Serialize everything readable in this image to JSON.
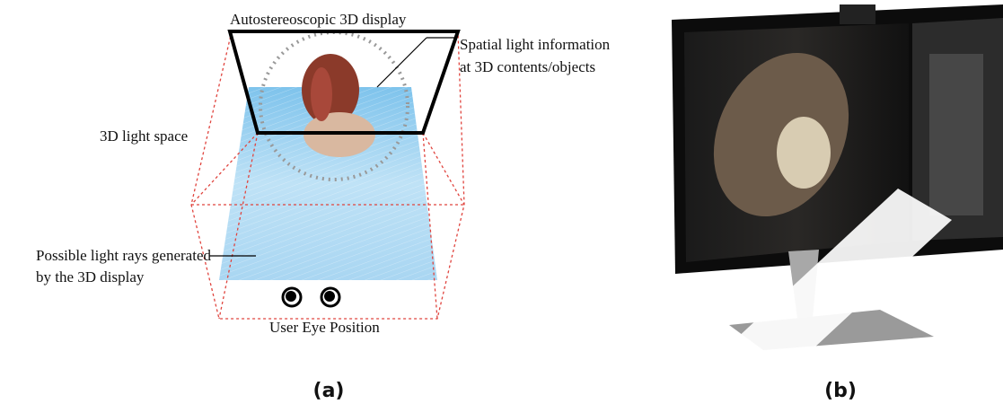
{
  "panel_a": {
    "display_label": "Autostereoscopic 3D display",
    "spatial_label": [
      "Spatial light information",
      "at 3D contents/objects"
    ],
    "space_label": "3D light space",
    "rays_label": [
      "Possible light rays generated",
      "by the 3D display"
    ],
    "eye_label": "User Eye Position",
    "caption": "(a)"
  },
  "panel_b": {
    "caption": "(b)"
  }
}
